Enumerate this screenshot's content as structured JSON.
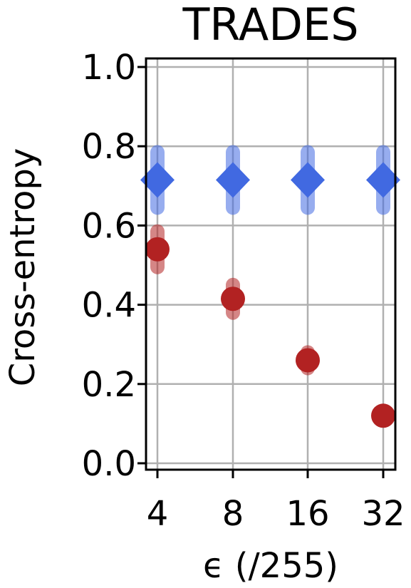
{
  "chart_data": {
    "type": "scatter",
    "title": "TRADES",
    "xlabel": "ϵ (/255)",
    "ylabel": "Cross-entropy",
    "categories": [
      "4",
      "8",
      "16",
      "32"
    ],
    "yticks": [
      "0.0",
      "0.2",
      "0.4",
      "0.6",
      "0.8",
      "1.0"
    ],
    "ylim": [
      0,
      1.0
    ],
    "grid": true,
    "series": [
      {
        "marker": "diamond",
        "color": "#4169e1",
        "values": [
          0.715,
          0.715,
          0.715,
          0.715
        ],
        "error": [
          0.07,
          0.07,
          0.07,
          0.07
        ]
      },
      {
        "marker": "circle",
        "color": "#b22222",
        "values": [
          0.54,
          0.415,
          0.26,
          0.12
        ],
        "error": [
          0.045,
          0.035,
          0.02,
          0.0
        ]
      }
    ]
  }
}
